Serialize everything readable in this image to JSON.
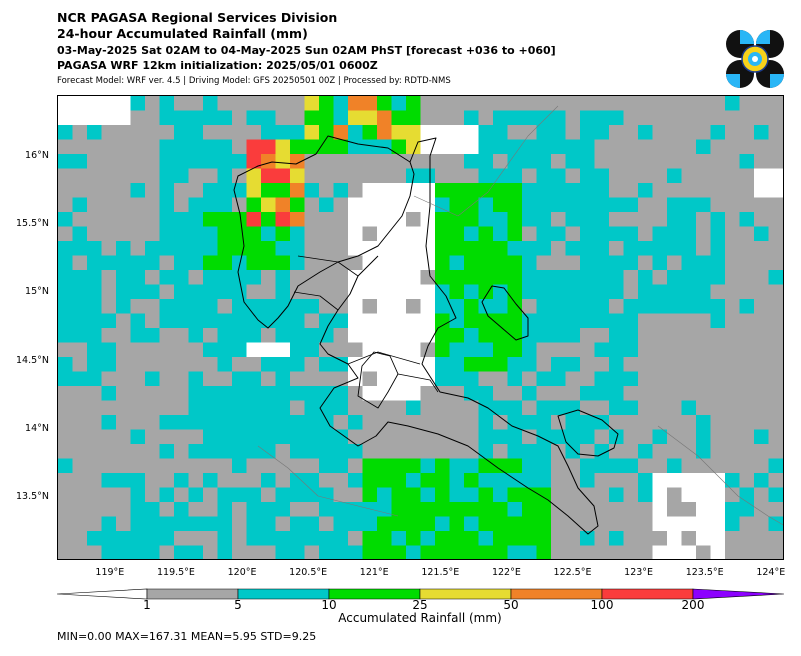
{
  "header": {
    "line1": "NCR PAGASA Regional Services Division",
    "line2": "24-hour Accumulated Rainfall (mm)",
    "line3": "03-May-2025 Sat 02AM to 04-May-2025 Sun 02AM PhST [forecast +036 to +060]",
    "line4": "PAGASA WRF 12km initialization: 2025/05/01 0600Z",
    "line5": "Forecast Model: WRF ver. 4.5 | Driving Model: GFS 20250501 00Z | Processed by: RDTD-NMS"
  },
  "map": {
    "lat_ticks": [
      "16°N",
      "15.5°N",
      "15°N",
      "14.5°N",
      "14°N",
      "13.5°N"
    ],
    "lon_ticks": [
      "119°E",
      "119.5°E",
      "120°E",
      "120.5°E",
      "121°E",
      "121.5°E",
      "122°E",
      "122.5°E",
      "123°E",
      "123.5°E",
      "124°E"
    ],
    "lat_values": [
      16,
      15.5,
      15,
      14.5,
      14,
      13.5
    ],
    "lon_values": [
      119,
      119.5,
      120,
      120.5,
      121,
      121.5,
      122,
      122.5,
      123,
      123.5,
      124
    ],
    "extent": {
      "lon_min": 118.6,
      "lon_max": 124.1,
      "lat_min": 13.05,
      "lat_max": 16.45
    }
  },
  "colorbar": {
    "title": "Accumulated Rainfall (mm)",
    "bounds": [
      "1",
      "5",
      "10",
      "25",
      "50",
      "100",
      "200"
    ],
    "colors": [
      "#ffffff",
      "#a6a6a6",
      "#00c8c8",
      "#00dc00",
      "#e6dc32",
      "#f08228",
      "#fa3c3c",
      "#8c00ff"
    ]
  },
  "stats": {
    "text": "MIN=0.00   MAX=167.31   MEAN=5.95   STD=9.25"
  },
  "palette": {
    "white": "#ffffff",
    "gray": "#a6a6a6",
    "cyan": "#00c8c8",
    "green": "#00dc00",
    "yellow": "#e6dc32",
    "orange": "#f08228",
    "red": "#fa3c3c"
  }
}
